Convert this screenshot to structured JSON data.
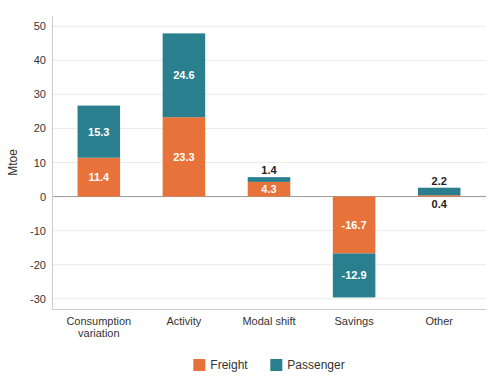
{
  "chart_data": {
    "type": "bar",
    "stacked": true,
    "categories": [
      "Consumption\nvariation",
      "Activity",
      "Modal shift",
      "Savings",
      "Other"
    ],
    "series": [
      {
        "name": "Freight",
        "color": "#E8733A",
        "values": [
          11.4,
          23.3,
          4.3,
          -16.7,
          0.4
        ]
      },
      {
        "name": "Passenger",
        "color": "#2A7F8F",
        "values": [
          15.3,
          24.6,
          1.4,
          -12.9,
          2.2
        ]
      }
    ],
    "ylabel": "Mtoe",
    "ylim": [
      -33,
      53
    ],
    "yticks": [
      -30,
      -20,
      -10,
      0,
      10,
      20,
      30,
      40,
      50
    ],
    "grid": true,
    "data_labels": true,
    "legend": "bottom"
  }
}
